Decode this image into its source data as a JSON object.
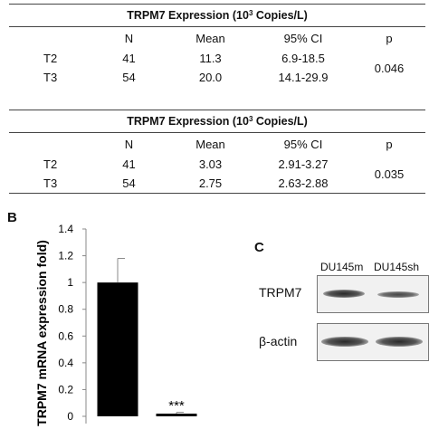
{
  "tables": [
    {
      "caption_main": "TRPM7 Expression (10",
      "caption_sup": "3",
      "caption_tail": " Copies/L)",
      "headers": [
        "",
        "N",
        "Mean",
        "95% CI",
        "p"
      ],
      "rows": [
        {
          "group": "T2",
          "n": "41",
          "mean": "11.3",
          "ci": "6.9-18.5"
        },
        {
          "group": "T3",
          "n": "54",
          "mean": "20.0",
          "ci": "14.1-29.9"
        }
      ],
      "p": "0.046"
    },
    {
      "caption_main": "TRPM7 Expression (10",
      "caption_sup": "3",
      "caption_tail": " Copies/L)",
      "headers": [
        "",
        "N",
        "Mean",
        "95% CI",
        "p"
      ],
      "rows": [
        {
          "group": "T2",
          "n": "41",
          "mean": "3.03",
          "ci": "2.91-3.27"
        },
        {
          "group": "T3",
          "n": "54",
          "mean": "2.75",
          "ci": "2.63-2.88"
        }
      ],
      "p": "0.035"
    }
  ],
  "panel_b": {
    "label": "B",
    "chart_data": {
      "type": "bar",
      "ylabel": "TRPM7 mRNA expression fold)",
      "ylim": [
        0,
        1.4
      ],
      "yticks": [
        "0",
        "0.2",
        "0.4",
        "0.6",
        "0.8",
        "1",
        "1.2",
        "1.4"
      ],
      "categories": [
        "",
        ""
      ],
      "values": [
        1.0,
        0.02
      ],
      "error_plus": [
        0.18,
        0.01
      ],
      "annotation": "***",
      "bar_color": "#000000"
    }
  },
  "panel_c": {
    "label": "C",
    "lanes": [
      "DU145m",
      "DU145sh"
    ],
    "rows": [
      "TRPM7",
      "β-actin"
    ]
  }
}
